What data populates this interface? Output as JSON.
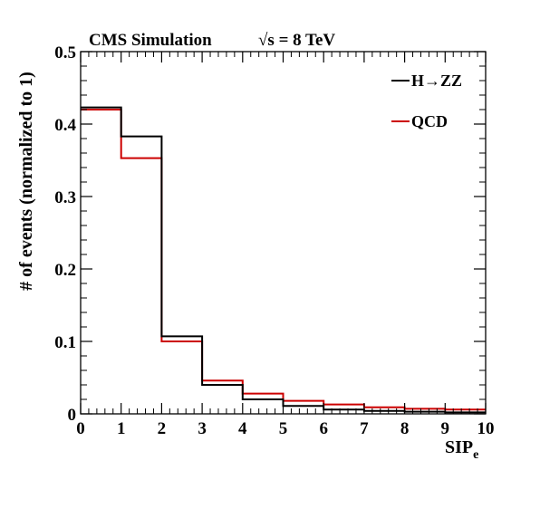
{
  "chart_data": {
    "type": "step",
    "title_left": "CMS Simulation",
    "title_right_sqrt": "√s",
    "title_right_rest": " = 8 TeV",
    "xlabel_main": "SIP",
    "xlabel_sub": "e",
    "ylabel": "# of events (normalized to 1)",
    "xlim": [
      0,
      10
    ],
    "ylim": [
      0,
      0.5
    ],
    "x_ticks": [
      "0",
      "1",
      "2",
      "3",
      "4",
      "5",
      "6",
      "7",
      "8",
      "9",
      "10"
    ],
    "y_ticks": [
      "0",
      "0.1",
      "0.2",
      "0.3",
      "0.4",
      "0.5"
    ],
    "bin_edges": [
      0,
      1,
      2,
      3,
      4,
      5,
      6,
      7,
      8,
      9,
      10
    ],
    "series": [
      {
        "name": "H→ZZ",
        "color": "#000000",
        "values": [
          0.423,
          0.383,
          0.107,
          0.04,
          0.02,
          0.011,
          0.006,
          0.004,
          0.003,
          0.002
        ]
      },
      {
        "name": "QCD",
        "color": "#cc0000",
        "values": [
          0.42,
          0.353,
          0.1,
          0.046,
          0.028,
          0.018,
          0.013,
          0.009,
          0.007,
          0.006
        ]
      }
    ],
    "legend_position": "top-right",
    "grid": false
  }
}
